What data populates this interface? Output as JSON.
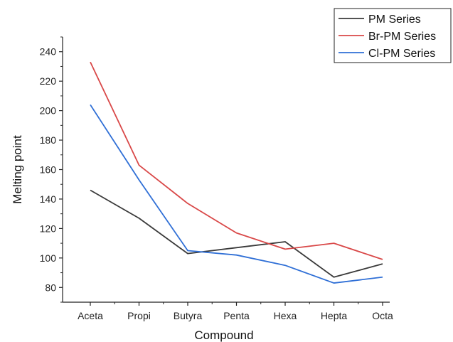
{
  "chart_data": {
    "type": "line",
    "title": "",
    "xlabel": "Compound",
    "ylabel": "Melting point",
    "categories": [
      "Aceta",
      "Propi",
      "Butyra",
      "Penta",
      "Hexa",
      "Hepta",
      "Octa"
    ],
    "ylim": [
      70,
      250
    ],
    "yticks": [
      80,
      100,
      120,
      140,
      160,
      180,
      200,
      220,
      240
    ],
    "grid": false,
    "legend_position": "top-right",
    "series": [
      {
        "name": "PM Series",
        "color": "#3a3a3a",
        "values": [
          146,
          127,
          103,
          107,
          111,
          87,
          96
        ]
      },
      {
        "name": "Br-PM Series",
        "color": "#d94848",
        "values": [
          233,
          163,
          137,
          117,
          106,
          110,
          99
        ]
      },
      {
        "name": "Cl-PM Series",
        "color": "#2f6fd6",
        "values": [
          204,
          153,
          105,
          102,
          95,
          83,
          87
        ]
      }
    ]
  }
}
